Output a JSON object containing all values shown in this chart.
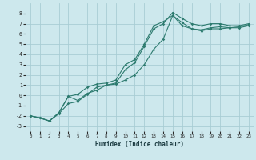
{
  "title": "",
  "xlabel": "Humidex (Indice chaleur)",
  "bg_color": "#cde8ed",
  "line_color": "#2d7b6f",
  "grid_color": "#a8cdd4",
  "xlim": [
    -0.5,
    23.5
  ],
  "ylim": [
    -3.5,
    9.0
  ],
  "xticks": [
    0,
    1,
    2,
    3,
    4,
    5,
    6,
    7,
    8,
    9,
    10,
    11,
    12,
    13,
    14,
    15,
    16,
    17,
    18,
    19,
    20,
    21,
    22,
    23
  ],
  "yticks": [
    -3,
    -2,
    -1,
    0,
    1,
    2,
    3,
    4,
    5,
    6,
    7,
    8
  ],
  "line1_x": [
    0,
    1,
    2,
    3,
    4,
    5,
    6,
    7,
    8,
    9,
    10,
    11,
    12,
    13,
    14,
    15,
    16,
    17,
    18,
    19,
    20,
    21,
    22,
    23
  ],
  "line1_y": [
    -2.0,
    -2.2,
    -2.5,
    -1.7,
    -0.1,
    -0.5,
    0.2,
    0.5,
    1.0,
    1.2,
    2.5,
    3.2,
    4.8,
    6.5,
    7.0,
    8.1,
    7.5,
    7.0,
    6.8,
    7.0,
    7.0,
    6.8,
    6.8,
    7.0
  ],
  "line2_x": [
    0,
    1,
    2,
    3,
    4,
    5,
    6,
    7,
    8,
    9,
    10,
    11,
    12,
    13,
    14,
    15,
    16,
    17,
    18,
    19,
    20,
    21,
    22,
    23
  ],
  "line2_y": [
    -2.0,
    -2.2,
    -2.5,
    -1.7,
    -0.1,
    0.1,
    0.8,
    1.1,
    1.2,
    1.5,
    3.0,
    3.5,
    5.0,
    6.8,
    7.2,
    7.8,
    6.8,
    6.5,
    6.4,
    6.6,
    6.7,
    6.6,
    6.6,
    6.8
  ],
  "line3_x": [
    0,
    1,
    2,
    3,
    4,
    5,
    6,
    7,
    8,
    9,
    10,
    11,
    12,
    13,
    14,
    15,
    16,
    17,
    18,
    19,
    20,
    21,
    22,
    23
  ],
  "line3_y": [
    -2.0,
    -2.2,
    -2.5,
    -1.8,
    -0.8,
    -0.6,
    0.1,
    0.8,
    1.0,
    1.1,
    1.5,
    2.0,
    3.0,
    4.5,
    5.5,
    7.8,
    7.1,
    6.5,
    6.3,
    6.5,
    6.5,
    6.6,
    6.7,
    6.9
  ]
}
